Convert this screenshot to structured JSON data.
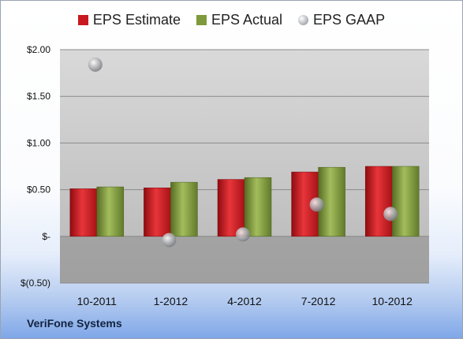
{
  "chart_data": {
    "type": "bar",
    "categories": [
      "10-2011",
      "1-2012",
      "4-2012",
      "7-2012",
      "10-2012"
    ],
    "series": [
      {
        "name": "EPS Estimate",
        "kind": "bar",
        "color": "#c8191f",
        "values": [
          0.51,
          0.52,
          0.61,
          0.69,
          0.75
        ]
      },
      {
        "name": "EPS Actual",
        "kind": "bar",
        "color": "#7e9a3c",
        "values": [
          0.53,
          0.58,
          0.63,
          0.74,
          0.75
        ]
      },
      {
        "name": "EPS GAAP",
        "kind": "point",
        "color": "#a9aab0",
        "values": [
          1.84,
          -0.04,
          0.02,
          0.34,
          0.24
        ]
      }
    ],
    "yticks": [
      "$(0.50)",
      "$-",
      "$0.50",
      "$1.00",
      "$1.50",
      "$2.00"
    ],
    "ytick_values": [
      -0.5,
      0,
      0.5,
      1.0,
      1.5,
      2.0
    ],
    "ylim": [
      -0.5,
      2.0
    ],
    "grid": true,
    "legend_position": "top"
  },
  "footer": {
    "company": "VeriFone Systems"
  }
}
